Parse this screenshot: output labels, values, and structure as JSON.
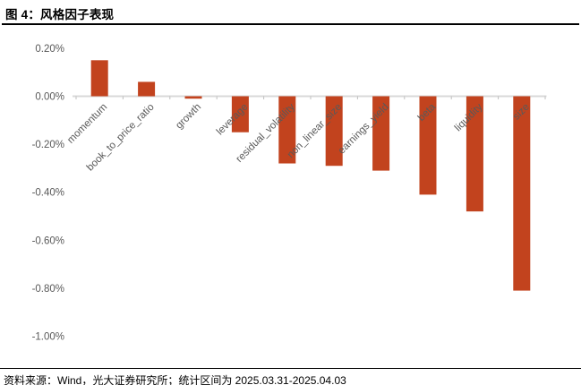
{
  "header": {
    "title": "图 4：风格因子表现"
  },
  "footer": {
    "source": "资料来源：Wind，光大证券研究所；统计区间为 2025.03.31-2025.04.03"
  },
  "chart_data": {
    "type": "bar",
    "title": "风格因子表现",
    "categories": [
      "momentum",
      "book_to_price_ratio",
      "growth",
      "leverage",
      "residual_volatility",
      "non_linear_size",
      "earnings_yield",
      "beta",
      "liquidity",
      "size"
    ],
    "values": [
      0.15,
      0.06,
      -0.01,
      -0.15,
      -0.28,
      -0.29,
      -0.31,
      -0.41,
      -0.48,
      -0.81
    ],
    "unit": "%",
    "xlabel": "",
    "ylabel": "",
    "ylim": [
      -1.0,
      0.2
    ],
    "ytick_step": 0.2,
    "ytick_labels": [
      "0.20%",
      "0.00%",
      "-0.20%",
      "-0.40%",
      "-0.60%",
      "-0.80%",
      "-1.00%"
    ],
    "grid": false,
    "legend_position": "none",
    "label_rotation_deg": -45,
    "colors": {
      "bar": "#C2431E",
      "axis_line": "#D9D9D9",
      "tick_mark": "#BFBFBF",
      "axis_label": "#595959"
    }
  }
}
